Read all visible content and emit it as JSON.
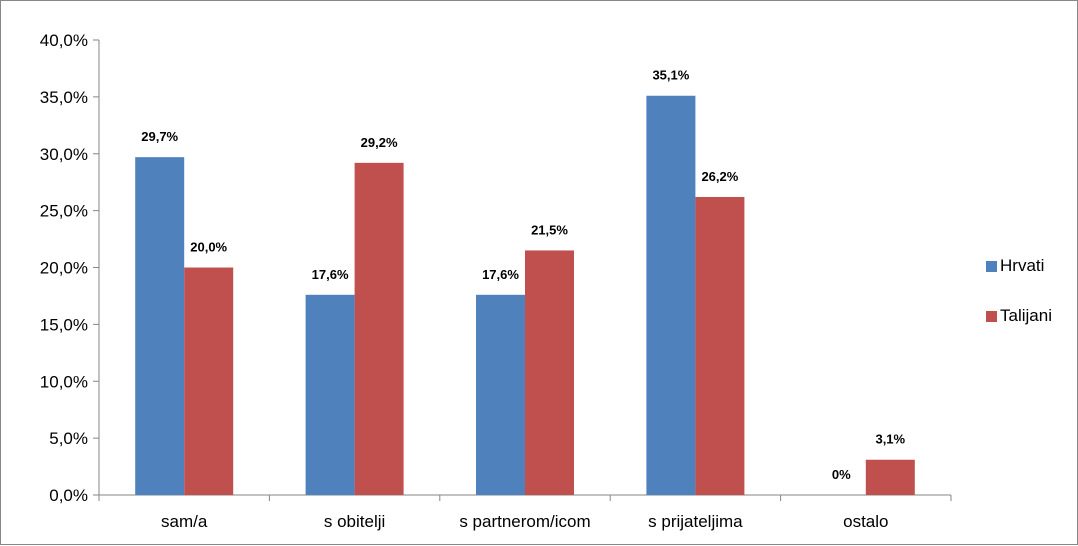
{
  "chart_data": {
    "type": "bar",
    "categories": [
      "sam/a",
      "s obitelji",
      "s partnerom/icom",
      "s prijateljima",
      "ostalo"
    ],
    "series": [
      {
        "name": "Hrvati",
        "color": "#4F81BD",
        "values": [
          29.7,
          17.6,
          17.6,
          35.1,
          0
        ],
        "labels": [
          "29,7%",
          "17,6%",
          "17,6%",
          "35,1%",
          "0%"
        ]
      },
      {
        "name": "Talijani",
        "color": "#C0504D",
        "values": [
          20.0,
          29.2,
          21.5,
          26.2,
          3.1
        ],
        "labels": [
          "20,0%",
          "29,2%",
          "21,5%",
          "26,2%",
          "3,1%"
        ]
      }
    ],
    "ylim": [
      0,
      40
    ],
    "yticks": [
      0,
      5,
      10,
      15,
      20,
      25,
      30,
      35,
      40
    ],
    "ytick_labels": [
      "0,0%",
      "5,0%",
      "10,0%",
      "15,0%",
      "20,0%",
      "25,0%",
      "30,0%",
      "35,0%",
      "40,0%"
    ],
    "grid": false,
    "legend_position": "right",
    "title": "",
    "xlabel": "",
    "ylabel": ""
  }
}
